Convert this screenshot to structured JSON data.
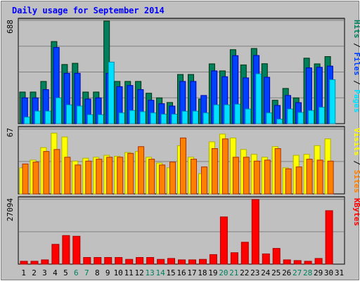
{
  "title": "Daily usage for September 2014",
  "colors": {
    "background": "#c0c0c0",
    "title": "#0000ff",
    "hits": "#00805c",
    "files": "#0040ff",
    "pages": "#00e0ff",
    "visits": "#ffff00",
    "sites": "#ff8000",
    "kbytes": "#ff0000",
    "weekend_day": "#00805c",
    "weekday": "#000000"
  },
  "chart_data": [
    {
      "type": "bar",
      "name": "hits-files-pages",
      "ymax_label": "688",
      "ylim": [
        0,
        688
      ],
      "series_label_parts": [
        {
          "text": "Pages",
          "color": "#00e0ff"
        },
        {
          "text": " / ",
          "color": "#000000"
        },
        {
          "text": "Files",
          "color": "#0040ff"
        },
        {
          "text": " / ",
          "color": "#000000"
        },
        {
          "text": "Hits",
          "color": "#00805c"
        }
      ],
      "series": [
        {
          "name": "Hits",
          "values": [
            212,
            212,
            283,
            551,
            397,
            405,
            212,
            212,
            688,
            283,
            283,
            283,
            204,
            173,
            142,
            330,
            330,
            165,
            401,
            354,
            496,
            394,
            504,
            402,
            157,
            236,
            173,
            439,
            401,
            450,
            0
          ]
        },
        {
          "name": "Files",
          "values": [
            173,
            173,
            228,
            511,
            338,
            338,
            165,
            173,
            338,
            248,
            256,
            228,
            157,
            134,
            118,
            283,
            283,
            189,
            354,
            315,
            456,
            307,
            457,
            311,
            122,
            189,
            141,
            374,
            378,
            386,
            0
          ]
        },
        {
          "name": "Pages",
          "values": [
            44,
            84,
            84,
            173,
            126,
            118,
            60,
            60,
            413,
            72,
            88,
            80,
            72,
            63,
            63,
            83,
            84,
            72,
            126,
            126,
            130,
            98,
            334,
            72,
            30,
            98,
            75,
            88,
            110,
            295,
            0
          ]
        }
      ],
      "categories": [
        "1",
        "2",
        "3",
        "4",
        "5",
        "6",
        "7",
        "8",
        "9",
        "10",
        "11",
        "12",
        "13",
        "14",
        "15",
        "16",
        "17",
        "18",
        "19",
        "20",
        "21",
        "22",
        "23",
        "24",
        "25",
        "26",
        "27",
        "28",
        "29",
        "30",
        "31"
      ]
    },
    {
      "type": "bar",
      "name": "visits-sites",
      "ymax_label": "67",
      "ylim": [
        0,
        67
      ],
      "series_label_parts": [
        {
          "text": "Sites",
          "color": "#ff8000"
        },
        {
          "text": " / ",
          "color": "#000000"
        },
        {
          "text": "Visits",
          "color": "#ffff00"
        }
      ],
      "series": [
        {
          "name": "Visits",
          "values": [
            27,
            35,
            48,
            63,
            59,
            34,
            37,
            38,
            40,
            39,
            43,
            44,
            38,
            32,
            27,
            50,
            38,
            21,
            54,
            62,
            58,
            46,
            41,
            38,
            49,
            27,
            40,
            41,
            50,
            57,
            0
          ]
        },
        {
          "name": "Sites",
          "values": [
            31,
            33,
            44,
            46,
            38,
            30,
            34,
            36,
            38,
            38,
            42,
            49,
            36,
            30,
            33,
            58,
            36,
            28,
            47,
            57,
            38,
            38,
            34,
            35,
            47,
            26,
            28,
            36,
            35,
            34,
            0
          ]
        }
      ]
    },
    {
      "type": "bar",
      "name": "kbytes",
      "ymax_label": "27094",
      "ylim": [
        0,
        27094
      ],
      "series_label_parts": [
        {
          "text": "KBytes",
          "color": "#ff0000"
        }
      ],
      "series": [
        {
          "name": "KBytes",
          "values": [
            1200,
            1200,
            1800,
            8300,
            12000,
            11700,
            2800,
            2800,
            2800,
            2800,
            2000,
            2800,
            2800,
            2000,
            2400,
            1800,
            1800,
            2000,
            4000,
            19800,
            4800,
            9200,
            27094,
            4300,
            6600,
            1800,
            1500,
            1200,
            2400,
            22400,
            0
          ]
        }
      ]
    }
  ],
  "x_axis": {
    "days": [
      "1",
      "2",
      "3",
      "4",
      "5",
      "6",
      "7",
      "8",
      "9",
      "10",
      "11",
      "12",
      "13",
      "14",
      "15",
      "16",
      "17",
      "18",
      "19",
      "20",
      "21",
      "22",
      "23",
      "24",
      "25",
      "26",
      "27",
      "28",
      "29",
      "30",
      "31"
    ],
    "weekend": [
      6,
      7,
      13,
      14,
      20,
      21,
      27,
      28
    ]
  }
}
